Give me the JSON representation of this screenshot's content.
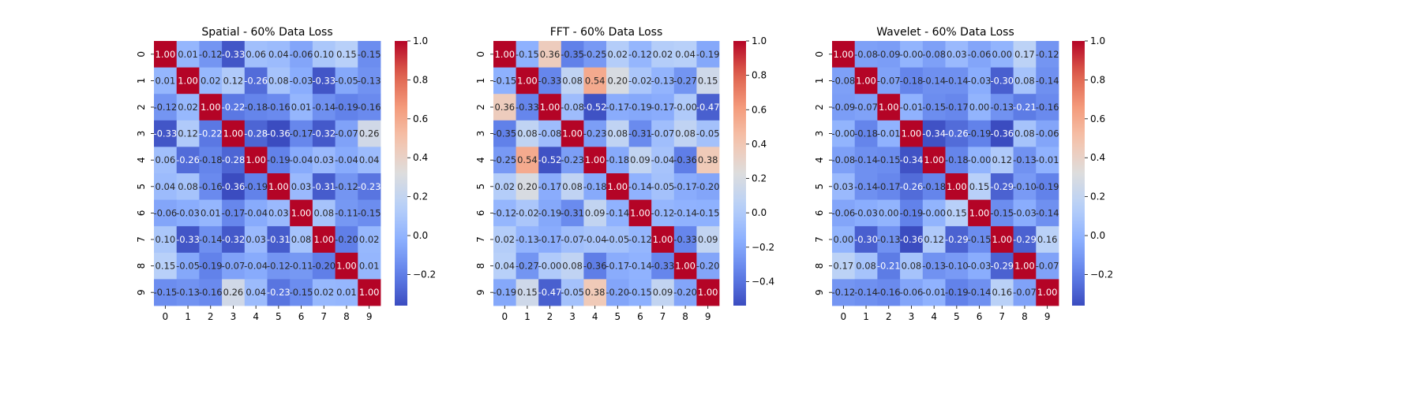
{
  "chart_data": [
    {
      "type": "heatmap",
      "title": "Spatial - 60% Data Loss",
      "x_categories": [
        "0",
        "1",
        "2",
        "3",
        "4",
        "5",
        "6",
        "7",
        "8",
        "9"
      ],
      "y_categories": [
        "0",
        "1",
        "2",
        "3",
        "4",
        "5",
        "6",
        "7",
        "8",
        "9"
      ],
      "colorbar": {
        "min": -0.36,
        "max": 1.0,
        "ticks": [
          1.0,
          0.8,
          0.6,
          0.4,
          0.2,
          0.0,
          -0.2
        ],
        "tick_labels": [
          "1.0",
          "0.8",
          "0.6",
          "0.4",
          "0.2",
          "0.0",
          "−0.2"
        ]
      },
      "colormap": "coolwarm",
      "matrix": [
        [
          1.0,
          0.01,
          -0.12,
          -0.33,
          0.06,
          0.04,
          -0.06,
          0.1,
          0.15,
          -0.15
        ],
        [
          0.01,
          1.0,
          0.02,
          0.12,
          -0.26,
          0.08,
          -0.03,
          -0.33,
          -0.05,
          -0.13
        ],
        [
          -0.12,
          0.02,
          1.0,
          -0.22,
          -0.18,
          -0.16,
          0.01,
          -0.14,
          -0.19,
          -0.16
        ],
        [
          -0.33,
          0.12,
          -0.22,
          1.0,
          -0.28,
          -0.36,
          -0.17,
          -0.32,
          -0.07,
          0.26
        ],
        [
          0.06,
          -0.26,
          -0.18,
          -0.28,
          1.0,
          -0.19,
          -0.04,
          0.03,
          -0.04,
          0.04
        ],
        [
          0.04,
          0.08,
          -0.16,
          -0.36,
          -0.19,
          1.0,
          0.03,
          -0.31,
          -0.12,
          -0.23
        ],
        [
          -0.06,
          -0.03,
          0.01,
          -0.17,
          -0.04,
          0.03,
          1.0,
          0.08,
          -0.11,
          -0.15
        ],
        [
          0.1,
          -0.33,
          -0.14,
          -0.32,
          0.03,
          -0.31,
          0.08,
          1.0,
          -0.2,
          0.02
        ],
        [
          0.15,
          -0.05,
          -0.19,
          -0.07,
          -0.04,
          -0.12,
          -0.11,
          -0.2,
          1.0,
          0.01
        ],
        [
          -0.15,
          -0.13,
          -0.16,
          0.26,
          0.04,
          -0.23,
          -0.15,
          0.02,
          0.01,
          1.0
        ]
      ]
    },
    {
      "type": "heatmap",
      "title": "FFT - 60% Data Loss",
      "x_categories": [
        "0",
        "1",
        "2",
        "3",
        "4",
        "5",
        "6",
        "7",
        "8",
        "9"
      ],
      "y_categories": [
        "0",
        "1",
        "2",
        "3",
        "4",
        "5",
        "6",
        "7",
        "8",
        "9"
      ],
      "colorbar": {
        "min": -0.54,
        "max": 1.0,
        "ticks": [
          1.0,
          0.8,
          0.6,
          0.4,
          0.2,
          0.0,
          -0.2,
          -0.4
        ],
        "tick_labels": [
          "1.0",
          "0.8",
          "0.6",
          "0.4",
          "0.2",
          "0.0",
          "−0.2",
          "−0.4"
        ]
      },
      "colormap": "coolwarm",
      "matrix": [
        [
          1.0,
          -0.15,
          0.36,
          -0.35,
          -0.25,
          0.02,
          -0.12,
          0.02,
          0.04,
          -0.19
        ],
        [
          -0.15,
          1.0,
          -0.33,
          0.08,
          0.54,
          0.2,
          -0.02,
          -0.13,
          -0.27,
          0.15
        ],
        [
          0.36,
          -0.33,
          1.0,
          -0.08,
          -0.52,
          -0.17,
          -0.19,
          -0.17,
          -0.0,
          -0.47
        ],
        [
          -0.35,
          0.08,
          -0.08,
          1.0,
          -0.23,
          0.08,
          -0.31,
          -0.07,
          0.08,
          -0.05
        ],
        [
          -0.25,
          0.54,
          -0.52,
          -0.23,
          1.0,
          -0.18,
          0.09,
          -0.04,
          -0.36,
          0.38
        ],
        [
          0.02,
          0.2,
          -0.17,
          0.08,
          -0.18,
          1.0,
          -0.14,
          -0.05,
          -0.17,
          -0.2
        ],
        [
          -0.12,
          -0.02,
          -0.19,
          -0.31,
          0.09,
          -0.14,
          1.0,
          -0.12,
          -0.14,
          -0.15
        ],
        [
          0.02,
          -0.13,
          -0.17,
          -0.07,
          -0.04,
          -0.05,
          -0.12,
          1.0,
          -0.33,
          0.09
        ],
        [
          0.04,
          -0.27,
          -0.0,
          0.08,
          -0.36,
          -0.17,
          -0.14,
          -0.33,
          1.0,
          -0.2
        ],
        [
          -0.19,
          0.15,
          -0.47,
          -0.05,
          0.38,
          -0.2,
          -0.15,
          0.09,
          -0.2,
          1.0
        ]
      ]
    },
    {
      "type": "heatmap",
      "title": "Wavelet - 60% Data Loss",
      "x_categories": [
        "0",
        "1",
        "2",
        "3",
        "4",
        "5",
        "6",
        "7",
        "8",
        "9"
      ],
      "y_categories": [
        "0",
        "1",
        "2",
        "3",
        "4",
        "5",
        "6",
        "7",
        "8",
        "9"
      ],
      "colorbar": {
        "min": -0.36,
        "max": 1.0,
        "ticks": [
          1.0,
          0.8,
          0.6,
          0.4,
          0.2,
          0.0,
          -0.2
        ],
        "tick_labels": [
          "1.0",
          "0.8",
          "0.6",
          "0.4",
          "0.2",
          "0.0",
          "−0.2"
        ]
      },
      "colormap": "coolwarm",
      "matrix": [
        [
          1.0,
          -0.08,
          -0.09,
          -0.0,
          -0.08,
          0.03,
          -0.06,
          0.0,
          0.17,
          -0.12
        ],
        [
          -0.08,
          1.0,
          -0.07,
          -0.18,
          -0.14,
          -0.14,
          -0.03,
          -0.3,
          0.08,
          -0.14
        ],
        [
          -0.09,
          -0.07,
          1.0,
          -0.01,
          -0.15,
          -0.17,
          0.0,
          -0.13,
          -0.21,
          -0.16
        ],
        [
          -0.0,
          -0.18,
          -0.01,
          1.0,
          -0.34,
          -0.26,
          -0.19,
          -0.36,
          0.08,
          -0.06
        ],
        [
          -0.08,
          -0.14,
          -0.15,
          -0.34,
          1.0,
          -0.18,
          -0.0,
          0.12,
          -0.13,
          -0.01
        ],
        [
          0.03,
          -0.14,
          -0.17,
          -0.26,
          -0.18,
          1.0,
          0.15,
          -0.29,
          -0.1,
          -0.19
        ],
        [
          -0.06,
          -0.03,
          0.0,
          -0.19,
          -0.0,
          0.15,
          1.0,
          -0.15,
          -0.03,
          -0.14
        ],
        [
          0.0,
          -0.3,
          -0.13,
          -0.36,
          0.12,
          -0.29,
          -0.15,
          1.0,
          -0.29,
          0.16
        ],
        [
          0.17,
          0.08,
          -0.21,
          0.08,
          -0.13,
          -0.1,
          -0.03,
          -0.29,
          1.0,
          -0.07
        ],
        [
          -0.12,
          -0.14,
          -0.16,
          -0.06,
          -0.01,
          -0.19,
          -0.14,
          0.16,
          -0.07,
          1.0
        ]
      ]
    }
  ]
}
